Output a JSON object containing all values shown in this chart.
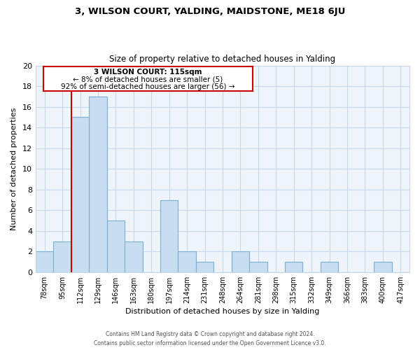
{
  "title": "3, WILSON COURT, YALDING, MAIDSTONE, ME18 6JU",
  "subtitle": "Size of property relative to detached houses in Yalding",
  "xlabel": "Distribution of detached houses by size in Yalding",
  "ylabel": "Number of detached properties",
  "footer_lines": [
    "Contains HM Land Registry data © Crown copyright and database right 2024.",
    "Contains public sector information licensed under the Open Government Licence v3.0."
  ],
  "bin_labels": [
    "78sqm",
    "95sqm",
    "112sqm",
    "129sqm",
    "146sqm",
    "163sqm",
    "180sqm",
    "197sqm",
    "214sqm",
    "231sqm",
    "248sqm",
    "264sqm",
    "281sqm",
    "298sqm",
    "315sqm",
    "332sqm",
    "349sqm",
    "366sqm",
    "383sqm",
    "400sqm",
    "417sqm"
  ],
  "bar_values": [
    2,
    3,
    15,
    17,
    5,
    3,
    0,
    7,
    2,
    1,
    0,
    2,
    1,
    0,
    1,
    0,
    1,
    0,
    0,
    1,
    0
  ],
  "bar_color": "#c8ddf0",
  "bar_edge_color": "#7aafd4",
  "grid_color": "#c8d8e8",
  "reference_line_color": "#cc0000",
  "ylim": [
    0,
    20
  ],
  "yticks": [
    0,
    2,
    4,
    6,
    8,
    10,
    12,
    14,
    16,
    18,
    20
  ],
  "annotation_title": "3 WILSON COURT: 115sqm",
  "annotation_line1": "← 8% of detached houses are smaller (5)",
  "annotation_line2": "92% of semi-detached houses are larger (56) →",
  "background_color": "#ffffff",
  "axis_bg_color": "#eef4f9"
}
